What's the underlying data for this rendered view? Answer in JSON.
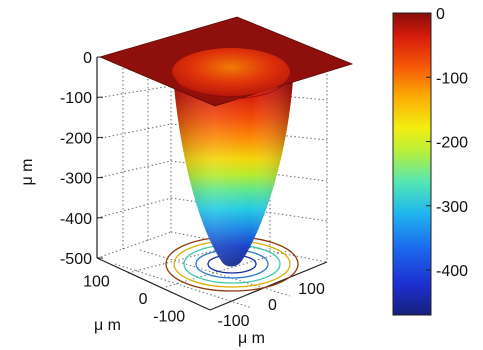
{
  "chart_data": {
    "type": "surface",
    "title": "",
    "xlabel": "μ m",
    "ylabel": "μ m",
    "zlabel": "μ m",
    "xlim": [
      -150,
      150
    ],
    "ylim": [
      -150,
      150
    ],
    "zlim": [
      -500,
      0
    ],
    "x_ticks": [
      -100,
      0,
      100
    ],
    "y_ticks": [
      -100,
      0,
      100
    ],
    "z_ticks": [
      -500,
      -400,
      -300,
      -200,
      -100,
      0
    ],
    "surface": {
      "shape": "inverted cone well inside a flat square plate",
      "plate_level": 0,
      "plate_half_width": 150,
      "rim_radius": 80,
      "bottom_depth": -500,
      "bottom_radius": 15
    },
    "contour_rings_at_floor": 5,
    "colormap": "jet",
    "colorbar": {
      "ticks": [
        0,
        -100,
        -200,
        -300,
        -400
      ],
      "range": [
        -470,
        0
      ]
    },
    "grid": true,
    "box": true
  }
}
